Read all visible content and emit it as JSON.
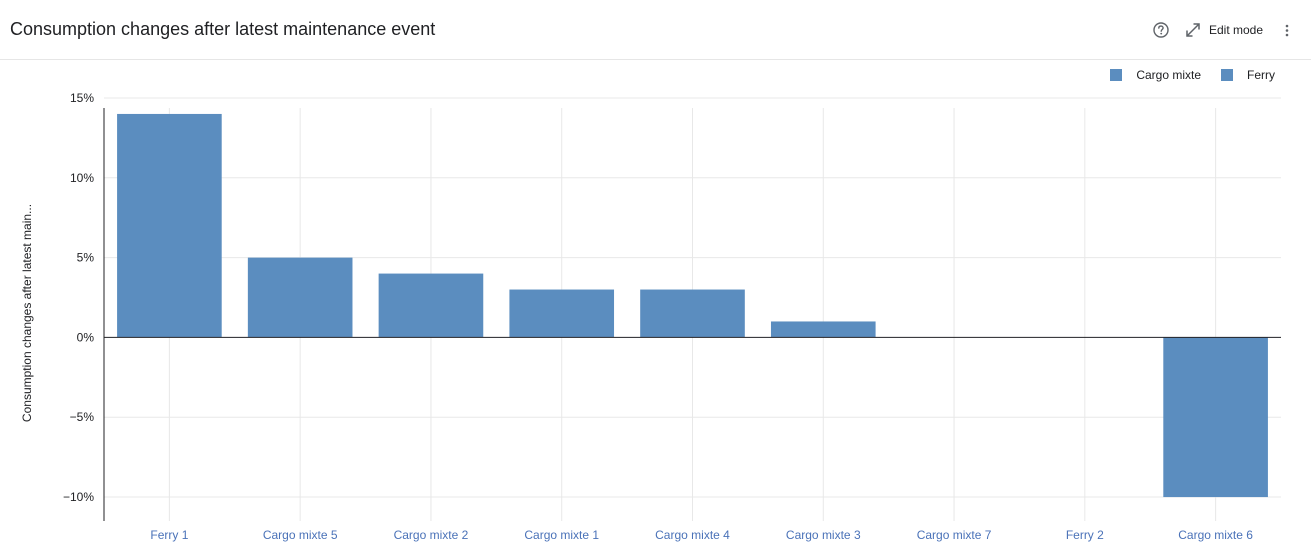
{
  "header": {
    "title": "Consumption changes after latest maintenance event",
    "edit_label": "Edit mode",
    "icons": [
      "help-icon",
      "expand-icon",
      "more-vert-icon"
    ]
  },
  "colors": {
    "bar": "#5b8dbf",
    "grid": "#e8e8e8",
    "zero_line": "#202124",
    "category_label": "#4a72b8"
  },
  "legend": [
    {
      "name": "Cargo mixte",
      "color": "#5b8dbf"
    },
    {
      "name": "Ferry",
      "color": "#5b8dbf"
    }
  ],
  "chart_data": {
    "type": "bar",
    "title": "Consumption changes after latest maintenance event",
    "ylabel": "Consumption changes after latest main...",
    "xlabel": "",
    "categories": [
      "Ferry 1",
      "Cargo mixte 5",
      "Cargo mixte 2",
      "Cargo mixte 1",
      "Cargo mixte 4",
      "Cargo mixte 3",
      "Cargo mixte 7",
      "Ferry 2",
      "Cargo mixte 6"
    ],
    "values": [
      14,
      5,
      4,
      3,
      3,
      1,
      0,
      0,
      -10
    ],
    "unit": "%",
    "ylim": [
      -11.5,
      15.5
    ],
    "yticks": [
      15,
      10,
      5,
      0,
      -5,
      -10
    ],
    "ytick_labels": [
      "15%",
      "10%",
      "5%",
      "0%",
      "−5%",
      "−10%"
    ],
    "grid": true,
    "legend_position": "top-right"
  }
}
